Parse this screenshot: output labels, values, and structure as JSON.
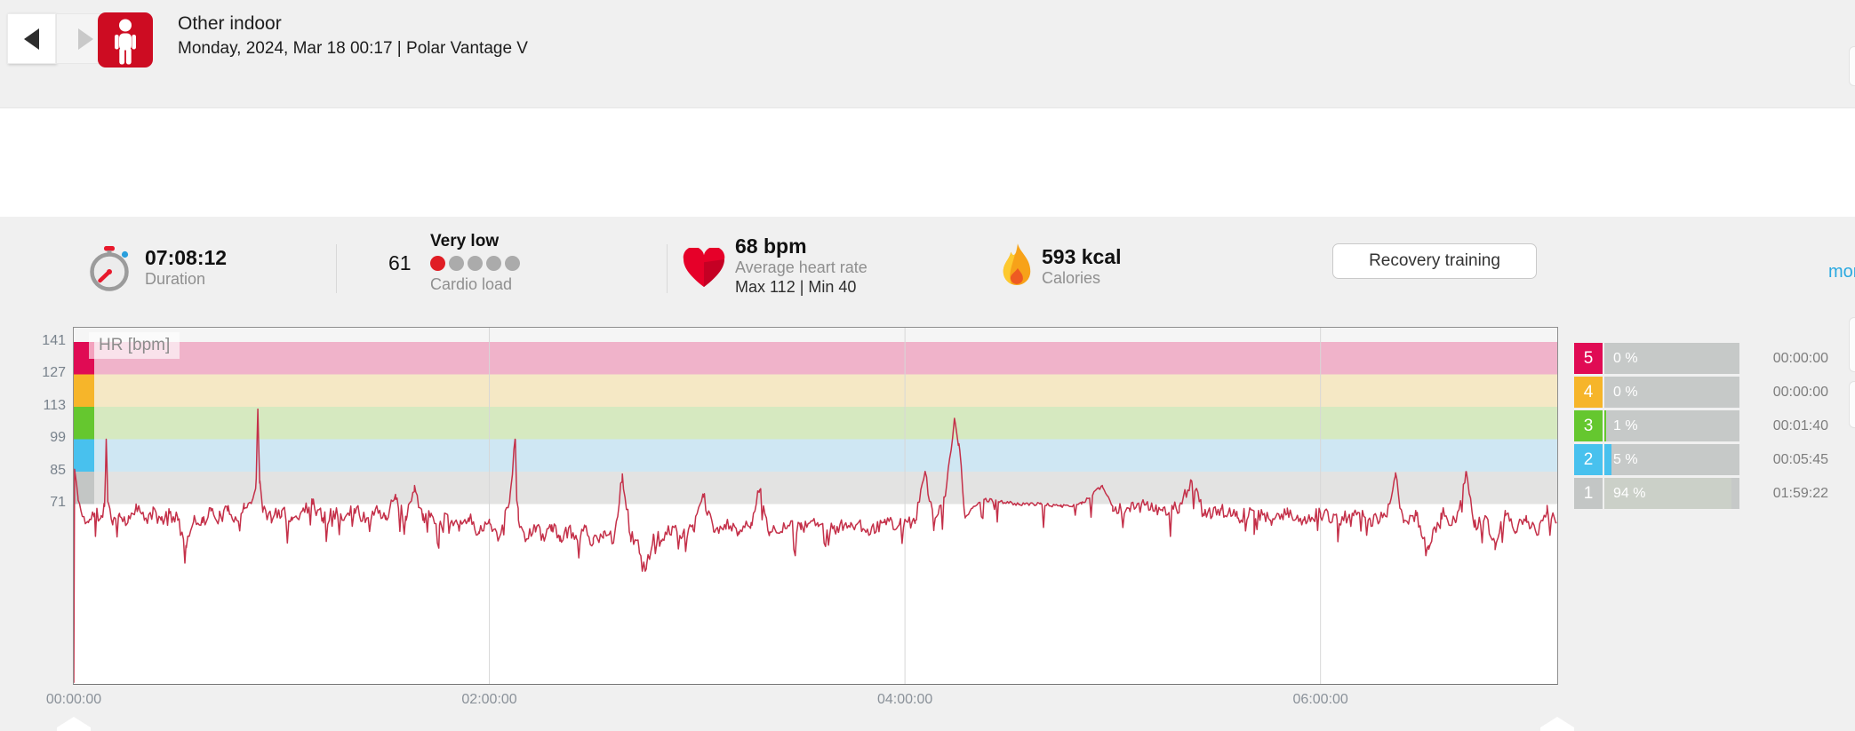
{
  "theme": {
    "polar-red": "#cd0c22",
    "link-blue": "#2aa9e0",
    "hr-line": "#c43049",
    "dot-filled": "#e01d24",
    "dot-empty": "#ababab"
  },
  "header": {
    "title": "Other indoor",
    "subtitle": "Monday, 2024, Mar 18 00:17 | Polar Vantage V",
    "back_label": "previous",
    "forward_label": "next"
  },
  "stats": {
    "duration": {
      "value": "07:08:12",
      "label": "Duration"
    },
    "cardio_load": {
      "value": "61",
      "rating": "Very low",
      "label": "Cardio load",
      "dots_total": 5,
      "dots_filled": 1
    },
    "heart_rate": {
      "value": "68 bpm",
      "label": "Average heart rate",
      "max_min": "Max 112  |  Min 40"
    },
    "calories": {
      "value": "593 kcal",
      "label": "Calories"
    },
    "button_label": "Recovery training",
    "more_label": "more"
  },
  "chart_data": {
    "type": "line",
    "legend_label": "HR [bpm]",
    "line_color": "#c43049",
    "grid_color": "#d7d7d7",
    "y_ticks": [
      141,
      127,
      113,
      99,
      85,
      71
    ],
    "x_ticks": [
      {
        "label": "00:00:00",
        "hour": 0
      },
      {
        "label": "02:00:00",
        "hour": 2
      },
      {
        "label": "04:00:00",
        "hour": 4
      },
      {
        "label": "06:00:00",
        "hour": 6
      }
    ],
    "x_range_hours": [
      0,
      7.137
    ],
    "zones": [
      {
        "zone": "5",
        "range": [
          127,
          141
        ],
        "band": "#f0b3ca",
        "color": "#e00b54",
        "pct": "0 %",
        "pct_value": 0,
        "time": "00:00:00",
        "fill_color": "#e00b54"
      },
      {
        "zone": "4",
        "range": [
          113,
          127
        ],
        "band": "#f5e8c5",
        "color": "#f6b52a",
        "pct": "0 %",
        "pct_value": 0,
        "time": "00:00:00",
        "fill_color": "#f6b52a"
      },
      {
        "zone": "3",
        "range": [
          99,
          113
        ],
        "band": "#d6e9c0",
        "color": "#65c72f",
        "pct": "1 %",
        "pct_value": 1,
        "time": "00:01:40",
        "fill_color": "#65c72f"
      },
      {
        "zone": "2",
        "range": [
          85,
          99
        ],
        "band": "#cfe7f3",
        "color": "#48c1ee",
        "pct": "5 %",
        "pct_value": 5,
        "time": "00:05:45",
        "fill_color": "#48c1ee"
      },
      {
        "zone": "1",
        "range": [
          71,
          85
        ],
        "band": "#e3e3e2",
        "color": "#c3c6c5",
        "pct": "94 %",
        "pct_value": 94,
        "time": "01:59:22",
        "fill_color": "#cbd0c8"
      }
    ],
    "hr_series_anchors": [
      [
        0,
        -6
      ],
      [
        0.004,
        86
      ],
      [
        0.02,
        74
      ],
      [
        0.04,
        66
      ],
      [
        0.07,
        63
      ],
      [
        0.1,
        67
      ],
      [
        0.13,
        65
      ],
      [
        0.148,
        70
      ],
      [
        0.156,
        99
      ],
      [
        0.164,
        72
      ],
      [
        0.19,
        64
      ],
      [
        0.22,
        67
      ],
      [
        0.26,
        63
      ],
      [
        0.3,
        71
      ],
      [
        0.34,
        64
      ],
      [
        0.38,
        67
      ],
      [
        0.42,
        64
      ],
      [
        0.46,
        67
      ],
      [
        0.5,
        64
      ],
      [
        0.54,
        53
      ],
      [
        0.58,
        66
      ],
      [
        0.62,
        63
      ],
      [
        0.66,
        68
      ],
      [
        0.7,
        65
      ],
      [
        0.74,
        68
      ],
      [
        0.78,
        65
      ],
      [
        0.82,
        69
      ],
      [
        0.86,
        73
      ],
      [
        0.878,
        82
      ],
      [
        0.886,
        112
      ],
      [
        0.895,
        80
      ],
      [
        0.91,
        68
      ],
      [
        0.95,
        65
      ],
      [
        1.0,
        68
      ],
      [
        1.05,
        64
      ],
      [
        1.1,
        68
      ],
      [
        1.15,
        71
      ],
      [
        1.2,
        65
      ],
      [
        1.25,
        68
      ],
      [
        1.3,
        64
      ],
      [
        1.35,
        69
      ],
      [
        1.4,
        65
      ],
      [
        1.45,
        68
      ],
      [
        1.5,
        66
      ],
      [
        1.55,
        73
      ],
      [
        1.6,
        64
      ],
      [
        1.64,
        79
      ],
      [
        1.68,
        64
      ],
      [
        1.72,
        67
      ],
      [
        1.76,
        62
      ],
      [
        1.8,
        66
      ],
      [
        1.85,
        62
      ],
      [
        1.9,
        65
      ],
      [
        1.95,
        59
      ],
      [
        2.0,
        63
      ],
      [
        2.05,
        57
      ],
      [
        2.1,
        75
      ],
      [
        2.124,
        99
      ],
      [
        2.14,
        64
      ],
      [
        2.18,
        56
      ],
      [
        2.22,
        61
      ],
      [
        2.26,
        57
      ],
      [
        2.3,
        62
      ],
      [
        2.34,
        55
      ],
      [
        2.38,
        60
      ],
      [
        2.42,
        56
      ],
      [
        2.46,
        61
      ],
      [
        2.5,
        54
      ],
      [
        2.55,
        59
      ],
      [
        2.6,
        56
      ],
      [
        2.64,
        84
      ],
      [
        2.68,
        57
      ],
      [
        2.72,
        52
      ],
      [
        2.755,
        43
      ],
      [
        2.79,
        58
      ],
      [
        2.83,
        55
      ],
      [
        2.88,
        61
      ],
      [
        2.93,
        57
      ],
      [
        2.98,
        60
      ],
      [
        3.03,
        74
      ],
      [
        3.08,
        59
      ],
      [
        3.14,
        62
      ],
      [
        3.2,
        59
      ],
      [
        3.26,
        63
      ],
      [
        3.3,
        77
      ],
      [
        3.35,
        59
      ],
      [
        3.42,
        62
      ],
      [
        3.5,
        60
      ],
      [
        3.58,
        63
      ],
      [
        3.66,
        60
      ],
      [
        3.74,
        63
      ],
      [
        3.82,
        60
      ],
      [
        3.9,
        63
      ],
      [
        3.98,
        62
      ],
      [
        4.05,
        64
      ],
      [
        4.1,
        84
      ],
      [
        4.14,
        61
      ],
      [
        4.19,
        74
      ],
      [
        4.238,
        108
      ],
      [
        4.26,
        97
      ],
      [
        4.29,
        65
      ],
      [
        4.33,
        70
      ],
      [
        4.38,
        73
      ],
      [
        4.45,
        72
      ],
      [
        4.55,
        71
      ],
      [
        4.65,
        71
      ],
      [
        4.75,
        70
      ],
      [
        4.85,
        71
      ],
      [
        4.95,
        79
      ],
      [
        5.0,
        70
      ],
      [
        5.08,
        69
      ],
      [
        5.16,
        71
      ],
      [
        5.24,
        68
      ],
      [
        5.32,
        70
      ],
      [
        5.38,
        81
      ],
      [
        5.44,
        66
      ],
      [
        5.52,
        69
      ],
      [
        5.6,
        65
      ],
      [
        5.68,
        68
      ],
      [
        5.76,
        64
      ],
      [
        5.84,
        67
      ],
      [
        5.92,
        64
      ],
      [
        6.0,
        67
      ],
      [
        6.08,
        64
      ],
      [
        6.16,
        67
      ],
      [
        6.24,
        64
      ],
      [
        6.32,
        66
      ],
      [
        6.36,
        83
      ],
      [
        6.4,
        63
      ],
      [
        6.46,
        66
      ],
      [
        6.52,
        53
      ],
      [
        6.58,
        67
      ],
      [
        6.65,
        63
      ],
      [
        6.7,
        85
      ],
      [
        6.74,
        61
      ],
      [
        6.79,
        65
      ],
      [
        6.84,
        54
      ],
      [
        6.89,
        66
      ],
      [
        6.94,
        59
      ],
      [
        6.99,
        66
      ],
      [
        7.04,
        58
      ],
      [
        7.09,
        68
      ],
      [
        7.137,
        63
      ]
    ],
    "noise": {
      "amplitude": 3.0,
      "step_seconds": 25,
      "seed": 11,
      "dip_chance": 0.07,
      "dip_extra": 7,
      "quiet_ranges": [
        [
          4.29,
          5.0,
          0.25
        ],
        [
          0,
          0.05,
          0.4
        ]
      ]
    },
    "clamp_bpm": [
      42,
      140
    ]
  }
}
